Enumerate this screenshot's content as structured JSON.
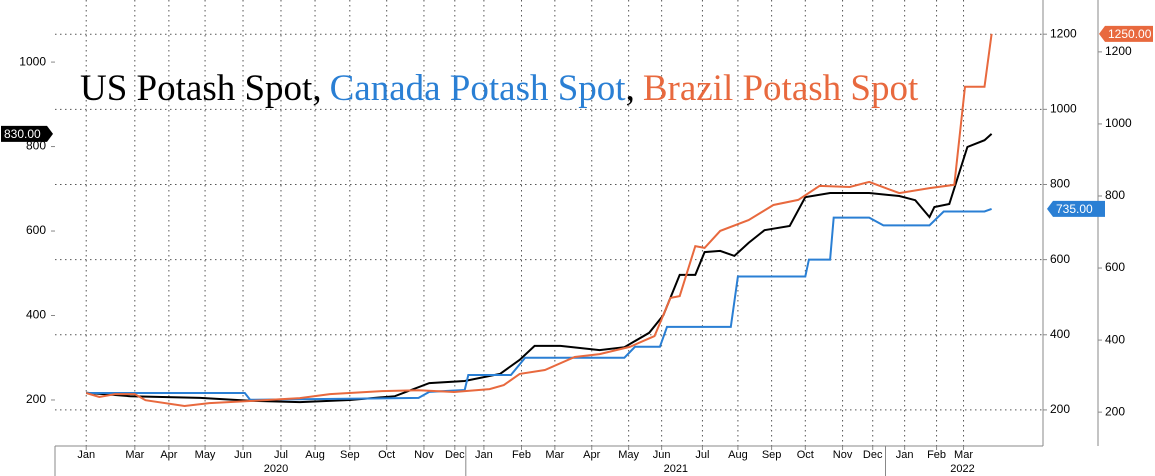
{
  "chart_data": {
    "type": "line",
    "title_separator": ",",
    "xlim": [
      0.25,
      28.1
    ],
    "ylim": [
      91,
      1147
    ],
    "yticks": [
      200,
      400,
      600,
      800,
      1000
    ],
    "y2lim": [
      104,
      1291
    ],
    "y2ticks": [
      200,
      400,
      600,
      800,
      1000,
      1200
    ],
    "y3lim": [
      106,
      1344
    ],
    "y3ticks": [
      200,
      400,
      600,
      800,
      1000,
      1200
    ],
    "grid": true,
    "xticks": [
      {
        "value": 1.13,
        "label": "Jan"
      },
      {
        "value": 2.5,
        "label": "Mar"
      },
      {
        "value": 3.46,
        "label": "Apr"
      },
      {
        "value": 4.48,
        "label": "May"
      },
      {
        "value": 5.55,
        "label": "Jun"
      },
      {
        "value": 6.62,
        "label": "Jul"
      },
      {
        "value": 7.58,
        "label": "Aug"
      },
      {
        "value": 8.56,
        "label": "Sep"
      },
      {
        "value": 9.6,
        "label": "Oct"
      },
      {
        "value": 10.65,
        "label": "Nov"
      },
      {
        "value": 11.52,
        "label": "Dec"
      },
      {
        "value": 12.34,
        "label": "Jan"
      },
      {
        "value": 13.4,
        "label": "Feb"
      },
      {
        "value": 14.34,
        "label": "Mar"
      },
      {
        "value": 15.38,
        "label": "Apr"
      },
      {
        "value": 16.42,
        "label": "May"
      },
      {
        "value": 17.35,
        "label": "Jun"
      },
      {
        "value": 18.5,
        "label": "Jul"
      },
      {
        "value": 19.5,
        "label": "Aug"
      },
      {
        "value": 20.45,
        "label": "Sep"
      },
      {
        "value": 21.4,
        "label": "Oct"
      },
      {
        "value": 22.45,
        "label": "Nov"
      },
      {
        "value": 23.3,
        "label": "Dec"
      },
      {
        "value": 24.2,
        "label": "Jan"
      },
      {
        "value": 25.1,
        "label": "Feb"
      },
      {
        "value": 25.86,
        "label": "Mar"
      }
    ],
    "x_groups": [
      {
        "value": 6.48,
        "label": "2020"
      },
      {
        "value": 17.75,
        "label": "2021"
      },
      {
        "value": 25.83,
        "label": "2022"
      }
    ],
    "x_group_dividers": [
      11.83,
      23.66
    ],
    "series": [
      {
        "name": "US Potash Spot",
        "color": "#000000",
        "axis": "y",
        "end_label": "830.00",
        "x": [
          1.13,
          2.37,
          4.34,
          5.75,
          7.15,
          8.56,
          9.83,
          10.8,
          11.8,
          12.8,
          13.35,
          13.77,
          14.5,
          15.6,
          16.3,
          17.0,
          17.4,
          17.86,
          18.3,
          18.56,
          19.0,
          19.4,
          19.8,
          20.25,
          20.96,
          21.4,
          22.1,
          23.2,
          24.05,
          24.5,
          24.9,
          25.04,
          25.46,
          25.97,
          26.45,
          26.65
        ],
        "values": [
          217,
          209,
          205,
          198,
          195,
          200,
          209,
          240,
          245,
          262,
          295,
          328,
          328,
          318,
          325,
          359,
          401,
          496,
          496,
          550,
          553,
          541,
          572,
          602,
          612,
          680,
          690,
          690,
          683,
          673,
          633,
          657,
          664,
          799,
          815,
          830
        ]
      },
      {
        "name": "Canada Potash Spot",
        "color": "#2a7fd4",
        "axis": "y2",
        "end_label": "735.00",
        "x": [
          1.13,
          5.6,
          5.75,
          10.5,
          10.8,
          11.8,
          11.9,
          13.1,
          13.5,
          16.3,
          16.6,
          17.3,
          17.5,
          19.3,
          19.5,
          21.4,
          21.5,
          22.1,
          22.2,
          23.2,
          23.6,
          24.9,
          25.3,
          26.45,
          26.65
        ],
        "values": [
          245,
          245,
          227,
          232,
          248,
          253,
          293,
          293,
          339,
          339,
          368,
          368,
          421,
          421,
          555,
          555,
          600,
          600,
          712,
          712,
          691,
          691,
          728,
          728,
          735
        ]
      },
      {
        "name": "Brazil Potash Spot",
        "color": "#e8693e",
        "axis": "y3",
        "end_label": "1250.00",
        "x": [
          1.13,
          1.5,
          1.94,
          2.5,
          2.8,
          3.9,
          4.6,
          5.75,
          7.15,
          8.0,
          9.4,
          10.5,
          11.5,
          12.5,
          12.9,
          13.35,
          14.06,
          14.9,
          15.6,
          16.45,
          17.15,
          17.6,
          17.86,
          18.3,
          18.56,
          19.0,
          19.8,
          20.5,
          21.2,
          21.8,
          22.65,
          23.2,
          24.05,
          24.9,
          25.6,
          25.9,
          26.45,
          26.65
        ],
        "values": [
          253,
          242,
          250,
          250,
          233,
          217,
          225,
          231,
          239,
          250,
          258,
          261,
          256,
          264,
          275,
          306,
          317,
          353,
          361,
          381,
          411,
          517,
          522,
          661,
          656,
          703,
          733,
          775,
          789,
          828,
          825,
          839,
          808,
          822,
          831,
          1103,
          1103,
          1250
        ]
      }
    ]
  }
}
